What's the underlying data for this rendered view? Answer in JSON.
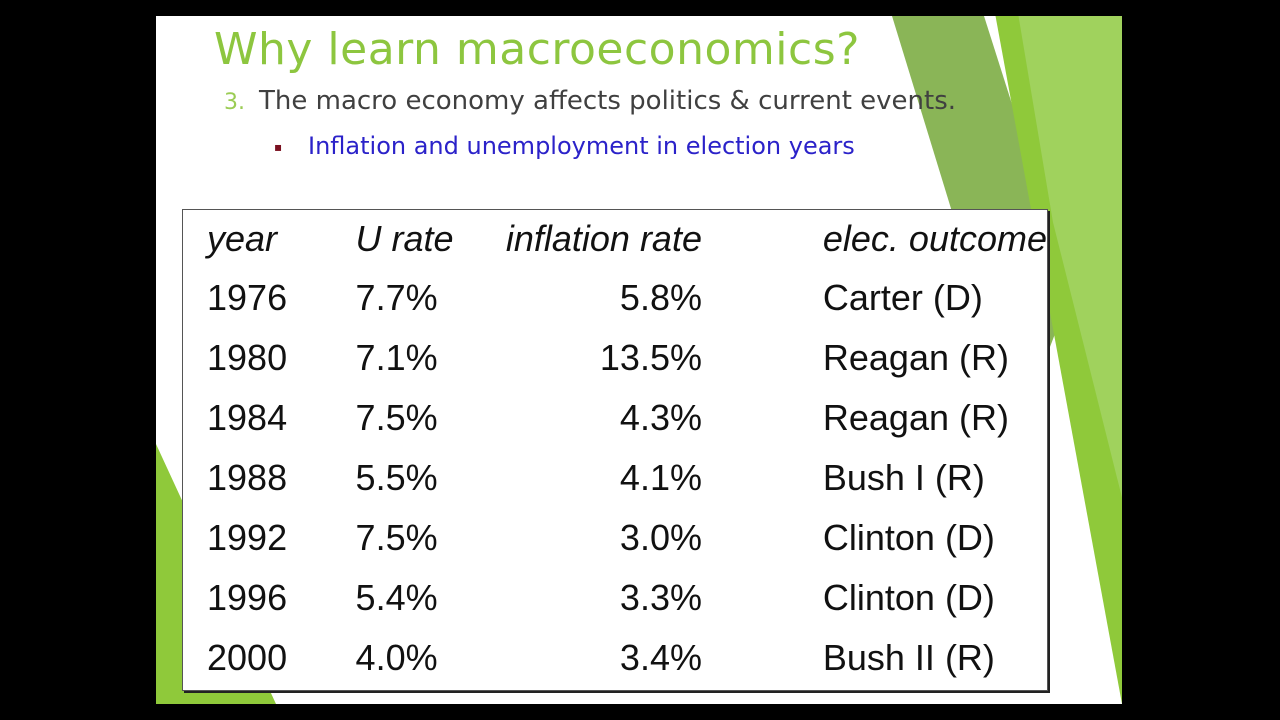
{
  "slide": {
    "title": "Why learn macroeconomics?",
    "point_number": "3.",
    "point_text": "The macro economy affects politics & current events.",
    "sub_bullet": "Inflation and unemployment in election years"
  },
  "table": {
    "headers": [
      "year",
      "U rate",
      "inflation rate",
      "elec. outcome"
    ],
    "rows": [
      [
        "1976",
        "7.7%",
        "5.8%",
        "Carter (D)"
      ],
      [
        "1980",
        "7.1%",
        "13.5%",
        "Reagan (R)"
      ],
      [
        "1984",
        "7.5%",
        "4.3%",
        "Reagan (R)"
      ],
      [
        "1988",
        "5.5%",
        "4.1%",
        "Bush I (R)"
      ],
      [
        "1992",
        "7.5%",
        "3.0%",
        "Clinton (D)"
      ],
      [
        "1996",
        "5.4%",
        "3.3%",
        "Clinton (D)"
      ],
      [
        "2000",
        "4.0%",
        "3.4%",
        "Bush II (R)"
      ]
    ]
  },
  "colors": {
    "title": "#8dc63f",
    "sub_bullet_text": "#2b22c9",
    "accent_green": "#8fc93a",
    "background": "#000000"
  }
}
